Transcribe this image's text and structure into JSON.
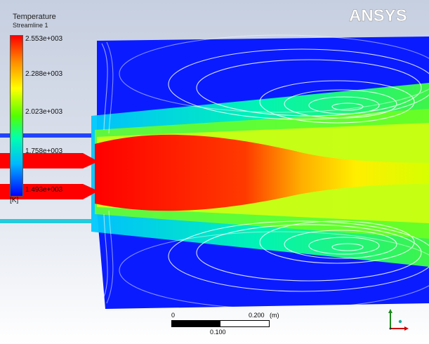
{
  "brand": {
    "logo_text": "ANSYS"
  },
  "legend": {
    "title": "Temperature",
    "subtitle": "Streamline 1",
    "labels": [
      "2.553e+003",
      "2.288e+003",
      "2.023e+003",
      "1.758e+003",
      "1.493e+003"
    ],
    "unit": "[K]"
  },
  "scale": {
    "zero": "0",
    "max": "0.200",
    "unit": "(m)",
    "mid": "0.100"
  },
  "colors": {
    "hot": "#ff0000",
    "warm": "#ffff00",
    "mid": "#00ff40",
    "cool": "#00b8ff",
    "cold": "#0000ff"
  }
}
